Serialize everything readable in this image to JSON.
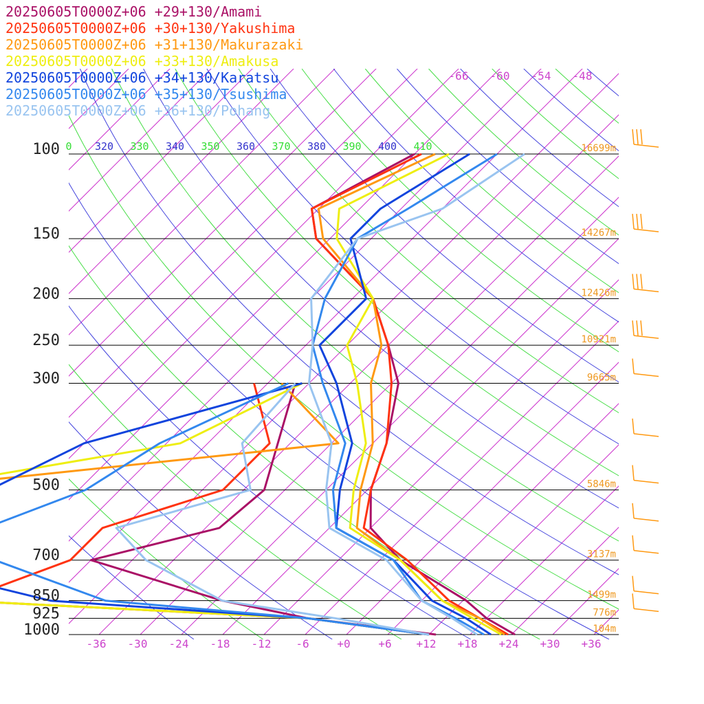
{
  "chart_data": {
    "type": "line",
    "x_ticks": [
      "-36",
      "-30",
      "-24",
      "-18",
      "-12",
      "-6",
      "+0",
      "+6",
      "+12",
      "+18",
      "+24",
      "+30",
      "+36"
    ],
    "pressure_levels": [
      {
        "p": 100,
        "label": "100",
        "height": "16699m"
      },
      {
        "p": 150,
        "label": "150",
        "height": "14267m"
      },
      {
        "p": 200,
        "label": "200",
        "height": "12426m"
      },
      {
        "p": 250,
        "label": "250",
        "height": "10921m"
      },
      {
        "p": 300,
        "label": "300",
        "height": "9665m"
      },
      {
        "p": 500,
        "label": "500",
        "height": "5846m"
      },
      {
        "p": 700,
        "label": "700",
        "height": "3137m"
      },
      {
        "p": 850,
        "label": "850",
        "height": "1499m"
      },
      {
        "p": 925,
        "label": "925",
        "height": "776m"
      },
      {
        "p": 1000,
        "label": "1000",
        "height": "104m"
      }
    ],
    "mixing_ratio_labels": [
      "-66",
      "-60",
      "-54",
      "-48"
    ],
    "theta_labels": [
      {
        "text": "0",
        "color": "#33dd33"
      },
      {
        "text": "320",
        "color": "#3333cc"
      },
      {
        "text": "330",
        "color": "#33dd33"
      },
      {
        "text": "340",
        "color": "#3333cc"
      },
      {
        "text": "350",
        "color": "#33dd33"
      },
      {
        "text": "360",
        "color": "#3333cc"
      },
      {
        "text": "370",
        "color": "#33dd33"
      },
      {
        "text": "380",
        "color": "#3333cc"
      },
      {
        "text": "390",
        "color": "#33dd33"
      },
      {
        "text": "400",
        "color": "#3333cc"
      },
      {
        "text": "410",
        "color": "#33dd33"
      }
    ],
    "series": [
      {
        "name": "20250605T0000Z+06 +29+130/Amami",
        "color": "#aa1166",
        "temp": [
          [
            100,
            -60
          ],
          [
            130,
            -67
          ],
          [
            150,
            -62
          ],
          [
            200,
            -45
          ],
          [
            250,
            -36
          ],
          [
            300,
            -29
          ],
          [
            400,
            -22
          ],
          [
            500,
            -17.5
          ],
          [
            600,
            -12
          ],
          [
            700,
            -3
          ],
          [
            850,
            12.5
          ],
          [
            925,
            18
          ],
          [
            1000,
            24.5
          ]
        ],
        "dew": [
          [
            300,
            -44
          ],
          [
            500,
            -33
          ],
          [
            600,
            -34
          ],
          [
            700,
            -48
          ],
          [
            850,
            -23
          ],
          [
            925,
            -8
          ],
          [
            1000,
            13
          ]
        ]
      },
      {
        "name": "20250605T0000Z+06 +30+130/Yakushima",
        "color": "#ff3311",
        "temp": [
          [
            100,
            -59
          ],
          [
            130,
            -67
          ],
          [
            150,
            -62
          ],
          [
            200,
            -45
          ],
          [
            250,
            -36
          ],
          [
            300,
            -30
          ],
          [
            400,
            -22
          ],
          [
            500,
            -17.5
          ],
          [
            600,
            -13
          ],
          [
            700,
            -2
          ],
          [
            850,
            10
          ],
          [
            925,
            17
          ],
          [
            1000,
            23.5
          ]
        ],
        "dew": [
          [
            300,
            -50
          ],
          [
            400,
            -39
          ],
          [
            500,
            -39
          ],
          [
            600,
            -51
          ],
          [
            700,
            -51
          ],
          [
            850,
            -61
          ],
          [
            925,
            -8
          ],
          [
            1000,
            12
          ]
        ]
      },
      {
        "name": "20250605T0000Z+06 +31+130/Makurazaki",
        "color": "#ff9911",
        "temp": [
          [
            100,
            -57
          ],
          [
            130,
            -66
          ],
          [
            150,
            -61
          ],
          [
            200,
            -45
          ],
          [
            250,
            -37
          ],
          [
            300,
            -33
          ],
          [
            400,
            -24
          ],
          [
            500,
            -19
          ],
          [
            600,
            -14
          ],
          [
            700,
            -3
          ],
          [
            850,
            9
          ],
          [
            925,
            17
          ],
          [
            1000,
            23
          ]
        ],
        "dew": [
          [
            300,
            -46
          ],
          [
            400,
            -29
          ],
          [
            500,
            -87
          ],
          [
            600,
            -79
          ],
          [
            700,
            -80
          ],
          [
            850,
            -61
          ],
          [
            925,
            -8
          ],
          [
            1000,
            12
          ]
        ]
      },
      {
        "name": "20250605T0000Z+06 +33+130/Amakusa",
        "color": "#eeee11",
        "temp": [
          [
            100,
            -55
          ],
          [
            130,
            -63
          ],
          [
            150,
            -59
          ],
          [
            200,
            -45
          ],
          [
            250,
            -42
          ],
          [
            300,
            -35
          ],
          [
            400,
            -25
          ],
          [
            500,
            -20
          ],
          [
            600,
            -15
          ],
          [
            700,
            -3
          ],
          [
            850,
            9
          ],
          [
            925,
            16
          ],
          [
            1000,
            22.5
          ]
        ],
        "dew": [
          [
            300,
            -43
          ],
          [
            400,
            -52
          ],
          [
            500,
            -85
          ],
          [
            600,
            -77
          ],
          [
            700,
            -80
          ],
          [
            850,
            -61
          ],
          [
            925,
            -8
          ],
          [
            1000,
            12
          ]
        ]
      },
      {
        "name": "20250605T0000Z+06 +34+130/Karatsu",
        "color": "#1144dd",
        "temp": [
          [
            100,
            -52
          ],
          [
            130,
            -57
          ],
          [
            150,
            -57
          ],
          [
            200,
            -46
          ],
          [
            250,
            -46
          ],
          [
            300,
            -38
          ],
          [
            400,
            -27
          ],
          [
            500,
            -22
          ],
          [
            600,
            -17
          ],
          [
            700,
            -4
          ],
          [
            850,
            7.5
          ],
          [
            925,
            15
          ],
          [
            1000,
            21
          ]
        ],
        "dew": [
          [
            300,
            -43
          ],
          [
            400,
            -66
          ],
          [
            500,
            -73
          ],
          [
            600,
            -81
          ],
          [
            700,
            -78
          ],
          [
            850,
            -48
          ],
          [
            925,
            -8
          ],
          [
            1000,
            12
          ]
        ]
      },
      {
        "name": "20250605T0000Z+06 +35+130/Tsushima",
        "color": "#3388ee",
        "temp": [
          [
            100,
            -48
          ],
          [
            130,
            -53
          ],
          [
            150,
            -56
          ],
          [
            200,
            -52
          ],
          [
            250,
            -47
          ],
          [
            300,
            -40
          ],
          [
            400,
            -28
          ],
          [
            500,
            -23
          ],
          [
            600,
            -17
          ],
          [
            700,
            -4
          ],
          [
            850,
            6
          ],
          [
            925,
            13.5
          ],
          [
            1000,
            20
          ]
        ],
        "dew": [
          [
            300,
            -45
          ],
          [
            400,
            -55
          ],
          [
            500,
            -59
          ],
          [
            600,
            -68
          ],
          [
            700,
            -62
          ],
          [
            850,
            -40
          ],
          [
            925,
            -8
          ],
          [
            1000,
            12
          ]
        ]
      },
      {
        "name": "20250605T0000Z+06 +36+130/Pohang",
        "color": "#99c4f0",
        "temp": [
          [
            100,
            -44
          ],
          [
            130,
            -48
          ],
          [
            150,
            -56
          ],
          [
            200,
            -54
          ],
          [
            250,
            -47
          ],
          [
            300,
            -42
          ],
          [
            400,
            -30
          ],
          [
            500,
            -24
          ],
          [
            600,
            -18
          ],
          [
            700,
            -5
          ],
          [
            850,
            6
          ],
          [
            925,
            13
          ],
          [
            1000,
            19
          ]
        ],
        "dew": [
          [
            300,
            -44
          ],
          [
            400,
            -43
          ],
          [
            500,
            -35
          ],
          [
            600,
            -49
          ],
          [
            700,
            -40
          ],
          [
            850,
            -23
          ],
          [
            925,
            -4
          ],
          [
            1000,
            12
          ]
        ]
      }
    ]
  }
}
